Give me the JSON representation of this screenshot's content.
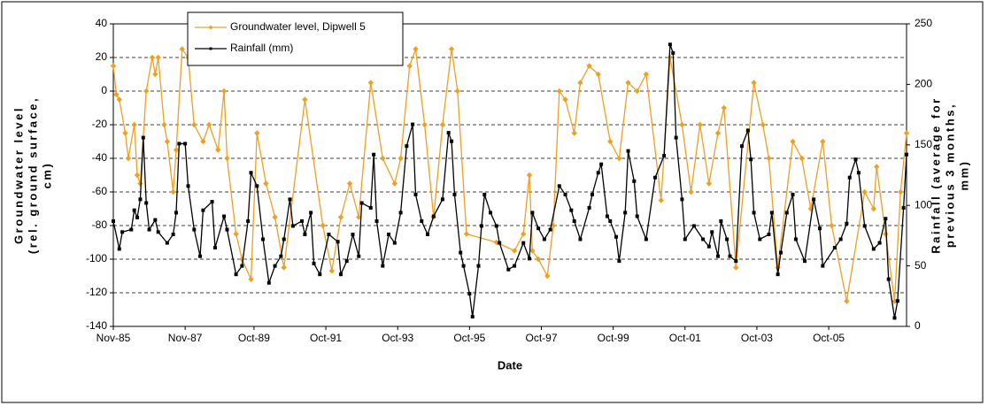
{
  "chart_data": {
    "type": "line",
    "ylabel": [
      "Groundwater level",
      "(rel. ground surface,",
      "cm)"
    ],
    "y2label": [
      "Rainfall (average for",
      "previous 3 months,",
      "mm)"
    ],
    "xlabel": "Date",
    "xlim": [
      "Nov-85",
      "Dec-07"
    ],
    "xticks": [
      "Nov-85",
      "Nov-87",
      "Oct-89",
      "Oct-91",
      "Oct-93",
      "Oct-95",
      "Oct-97",
      "Oct-99",
      "Oct-01",
      "Oct-03",
      "Oct-05"
    ],
    "ylim": [
      -140,
      40
    ],
    "yticks": [
      -140,
      -120,
      -100,
      -80,
      -60,
      -40,
      -20,
      0,
      20,
      40
    ],
    "y2lim": [
      0,
      250
    ],
    "y2ticks": [
      0,
      50,
      100,
      150,
      200,
      250
    ],
    "grid": true,
    "legend": "upper left",
    "series": [
      {
        "name": "Groundwater level, Dipwell 5",
        "color": "#f0a020",
        "axis": "y",
        "x": [
          "Nov-85",
          "Dec-85",
          "Jan-86",
          "Mar-86",
          "Apr-86",
          "Jun-86",
          "Jul-86",
          "Aug-86",
          "Oct-86",
          "Dec-86",
          "Jan-87",
          "Feb-87",
          "Apr-87",
          "May-87",
          "Jul-87",
          "Aug-87",
          "Oct-87",
          "Dec-87",
          "Feb-88",
          "May-88",
          "Jul-88",
          "Oct-88",
          "Dec-88",
          "Jan-89",
          "Apr-89",
          "Jun-89",
          "Sep-89",
          "Nov-89",
          "Feb-90",
          "May-90",
          "Aug-90",
          "Mar-91",
          "Sep-91",
          "Dec-91",
          "Mar-92",
          "Jun-92",
          "Sep-92",
          "Jan-93",
          "May-93",
          "Sep-93",
          "Nov-93",
          "Feb-94",
          "Apr-94",
          "Jul-94",
          "Oct-94",
          "Jan-95",
          "Apr-95",
          "Jun-95",
          "Sep-95",
          "Jul-96",
          "Jan-97",
          "Apr-97",
          "Jun-97",
          "Jul-97",
          "Sep-97",
          "Dec-97",
          "Feb-98",
          "Apr-98",
          "Jun-98",
          "Sep-98",
          "Nov-98",
          "Feb-99",
          "May-99",
          "Sep-99",
          "Dec-99",
          "Mar-00",
          "Jun-00",
          "Sep-00",
          "Feb-01",
          "May-01",
          "Sep-01",
          "Dec-01",
          "Mar-02",
          "Jun-02",
          "Sep-02",
          "Nov-02",
          "Mar-03",
          "Sep-03",
          "Dec-03",
          "Feb-04",
          "May-04",
          "Oct-04",
          "Jan-05",
          "Apr-05",
          "Aug-05",
          "Nov-05",
          "Apr-06",
          "Oct-06",
          "Jan-07",
          "Feb-07",
          "May-07",
          "Aug-07",
          "Oct-07",
          "Dec-07"
        ],
        "values": [
          15,
          -2,
          -5,
          -25,
          -40,
          -20,
          -50,
          -55,
          0,
          20,
          10,
          20,
          -20,
          -30,
          -60,
          -35,
          25,
          20,
          -20,
          -30,
          -20,
          -35,
          0,
          -40,
          -85,
          -100,
          -112,
          -25,
          -55,
          -75,
          -105,
          -5,
          -80,
          -107,
          -75,
          -55,
          -75,
          5,
          -40,
          -55,
          -40,
          15,
          25,
          -20,
          -75,
          -20,
          25,
          0,
          -85,
          -90,
          -95,
          -85,
          -50,
          -95,
          -100,
          -110,
          -80,
          0,
          -5,
          -25,
          5,
          15,
          10,
          -30,
          -40,
          5,
          0,
          10,
          -65,
          20,
          -20,
          -60,
          -20,
          -55,
          -25,
          -10,
          -105,
          5,
          -20,
          -40,
          -105,
          -30,
          -40,
          -70,
          -30,
          -80,
          -125,
          -60,
          -70,
          -45,
          -85,
          -125,
          -60,
          -25
        ]
      },
      {
        "name": "Rainfall (mm)",
        "color": "#000000",
        "axis": "y2",
        "x": [
          "Nov-85",
          "Jan-86",
          "Feb-86",
          "May-86",
          "Jun-86",
          "Jul-86",
          "Aug-86",
          "Sep-86",
          "Oct-86",
          "Nov-86",
          "Jan-87",
          "Feb-87",
          "May-87",
          "Jul-87",
          "Aug-87",
          "Sep-87",
          "Nov-87",
          "Dec-87",
          "Feb-88",
          "Apr-88",
          "May-88",
          "Aug-88",
          "Sep-88",
          "Dec-88",
          "Jan-89",
          "Apr-89",
          "Jun-89",
          "Aug-89",
          "Sep-89",
          "Nov-89",
          "Jan-90",
          "Mar-90",
          "May-90",
          "Jul-90",
          "Aug-90",
          "Oct-90",
          "Nov-90",
          "Feb-91",
          "Mar-91",
          "May-91",
          "Jun-91",
          "Aug-91",
          "Nov-91",
          "Feb-92",
          "Mar-92",
          "May-92",
          "Jul-92",
          "Sep-92",
          "Oct-92",
          "Jan-93",
          "Feb-93",
          "Mar-93",
          "May-93",
          "Jul-93",
          "Sep-93",
          "Nov-93",
          "Jan-94",
          "Mar-94",
          "Apr-94",
          "Jun-94",
          "Aug-94",
          "Oct-94",
          "Jan-95",
          "Mar-95",
          "Apr-95",
          "May-95",
          "Jul-95",
          "Aug-95",
          "Oct-95",
          "Nov-95",
          "Jan-96",
          "Feb-96",
          "Mar-96",
          "May-96",
          "Jul-96",
          "Aug-96",
          "Nov-96",
          "Jan-97",
          "Apr-97",
          "Jun-97",
          "Jul-97",
          "Sep-97",
          "Nov-97",
          "Jan-98",
          "Apr-98",
          "Jun-98",
          "Aug-98",
          "Sep-98",
          "Nov-98",
          "Feb-99",
          "Mar-99",
          "May-99",
          "Jun-99",
          "Aug-99",
          "Sep-99",
          "Nov-99",
          "Dec-99",
          "Feb-00",
          "Mar-00",
          "May-00",
          "Jun-00",
          "Sep-00",
          "Dec-00",
          "Mar-01",
          "May-01",
          "Jun-01",
          "Jul-01",
          "Sep-01",
          "Oct-01",
          "Jan-02",
          "Apr-02",
          "Jun-02",
          "Jul-02",
          "Sep-02",
          "Oct-02",
          "Dec-02",
          "Jan-03",
          "Mar-03",
          "May-03",
          "Jul-03",
          "Aug-03",
          "Sep-03",
          "Nov-03",
          "Feb-04",
          "Mar-04",
          "May-04",
          "Jun-04",
          "Aug-04",
          "Oct-04",
          "Nov-04",
          "Feb-05",
          "May-05",
          "Jul-05",
          "Aug-05",
          "Dec-05",
          "Feb-06",
          "Apr-06",
          "May-06",
          "Jul-06",
          "Aug-06",
          "Oct-06",
          "Jan-07",
          "Mar-07",
          "May-07",
          "Jun-07",
          "Aug-07",
          "Sep-07",
          "Nov-07",
          "Dec-07"
        ],
        "values": [
          87,
          64,
          78,
          80,
          96,
          90,
          105,
          156,
          102,
          80,
          88,
          78,
          69,
          76,
          94,
          151,
          151,
          116,
          80,
          58,
          96,
          103,
          65,
          91,
          80,
          43,
          50,
          87,
          127,
          116,
          72,
          36,
          50,
          58,
          72,
          105,
          83,
          87,
          76,
          94,
          52,
          43,
          76,
          70,
          43,
          54,
          76,
          58,
          102,
          98,
          142,
          87,
          50,
          76,
          69,
          94,
          149,
          167,
          109,
          87,
          76,
          91,
          105,
          160,
          153,
          109,
          61,
          50,
          27,
          8,
          50,
          83,
          109,
          94,
          83,
          69,
          47,
          50,
          69,
          56,
          94,
          81,
          72,
          80,
          116,
          109,
          96,
          87,
          72,
          98,
          109,
          127,
          134,
          91,
          87,
          74,
          54,
          94,
          145,
          120,
          91,
          72,
          123,
          141,
          233,
          226,
          156,
          105,
          72,
          83,
          72,
          66,
          78,
          58,
          87,
          72,
          58,
          54,
          149,
          162,
          138,
          94,
          72,
          76,
          94,
          43,
          61,
          94,
          109,
          72,
          54,
          105,
          81,
          50,
          65,
          72,
          85,
          123,
          138,
          127,
          83,
          64,
          69,
          89,
          39,
          7,
          21,
          98,
          142
        ]
      }
    ]
  }
}
